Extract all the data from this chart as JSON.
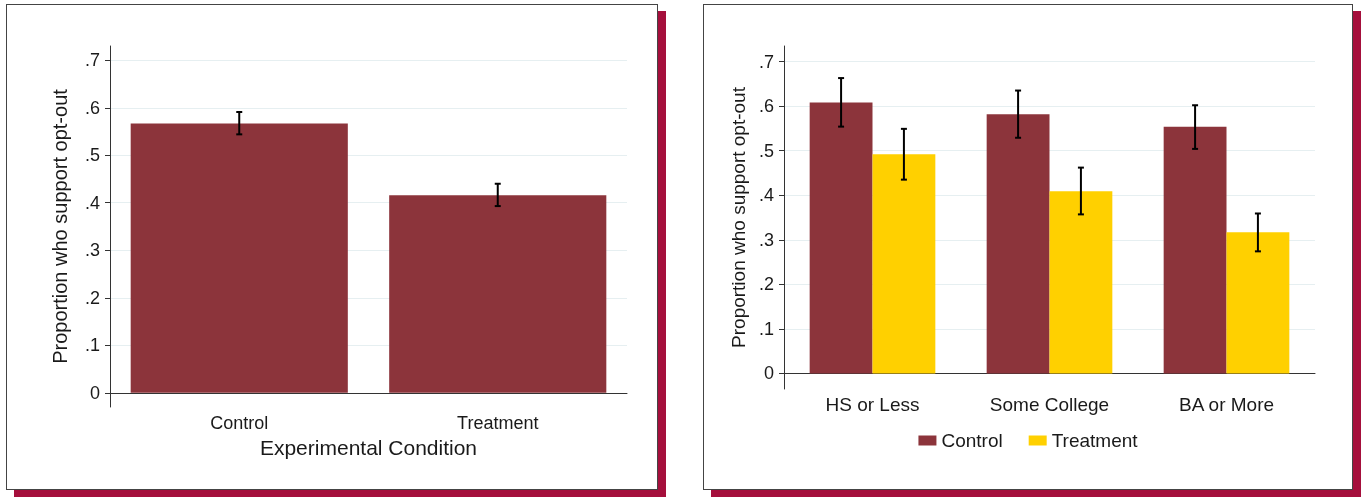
{
  "chart_data": [
    {
      "type": "bar",
      "xlabel": "Experimental Condition",
      "ylabel": "Proportion who support opt-out",
      "categories": [
        "Control",
        "Treatment"
      ],
      "values": [
        0.567,
        0.416
      ],
      "errors": [
        [
          0.544,
          0.591
        ],
        [
          0.393,
          0.44
        ]
      ],
      "color": "#8c343b",
      "ylim": [
        -0.03,
        0.73
      ],
      "yticks": [
        0,
        {
          "value": 0.1,
          "label": ".1"
        },
        {
          "value": 0.2,
          "label": ".2"
        },
        {
          "value": 0.3,
          "label": ".3"
        },
        {
          "value": 0.4,
          "label": ".4"
        },
        {
          "value": 0.5,
          "label": ".5"
        },
        {
          "value": 0.6,
          "label": ".6"
        },
        {
          "value": 0.7,
          "label": ".7"
        }
      ],
      "grid": "y"
    },
    {
      "type": "bar",
      "ylabel": "Proportion who support opt-out",
      "categories": [
        "HS or Less",
        "Some College",
        "BA or More"
      ],
      "series": [
        {
          "name": "Control",
          "color": "#8c343b",
          "values": [
            0.608,
            0.582,
            0.554
          ],
          "errors": [
            [
              0.554,
              0.663
            ],
            [
              0.529,
              0.635
            ],
            [
              0.504,
              0.602
            ]
          ]
        },
        {
          "name": "Treatment",
          "color": "#ffd000",
          "values": [
            0.492,
            0.409,
            0.317
          ],
          "errors": [
            [
              0.435,
              0.549
            ],
            [
              0.357,
              0.462
            ],
            [
              0.274,
              0.359
            ]
          ]
        }
      ],
      "ylim": [
        -0.035,
        0.735
      ],
      "yticks": [
        0,
        {
          "value": 0.1,
          "label": ".1"
        },
        {
          "value": 0.2,
          "label": ".2"
        },
        {
          "value": 0.3,
          "label": ".3"
        },
        {
          "value": 0.4,
          "label": ".4"
        },
        {
          "value": 0.5,
          "label": ".5"
        },
        {
          "value": 0.6,
          "label": ".6"
        },
        {
          "value": 0.7,
          "label": ".7"
        }
      ],
      "grid": "y",
      "legend": "bottom"
    }
  ]
}
